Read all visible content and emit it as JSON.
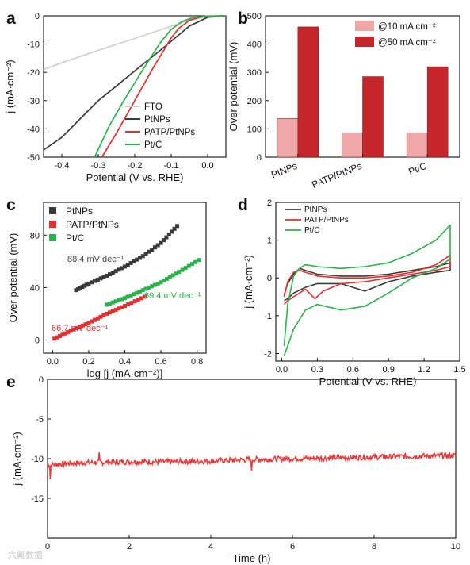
{
  "chart_data": [
    {
      "panel_label": "a",
      "type": "line",
      "xlabel": "Potential (V vs. RHE)",
      "ylabel": "j (mA·cm⁻²)",
      "xlim": [
        -0.45,
        0.05
      ],
      "ylim": [
        -50,
        0
      ],
      "x_ticks": [
        "-0.4",
        "-0.3",
        "-0.2",
        "-0.1",
        "0.0"
      ],
      "y_ticks": [
        "0",
        "-10",
        "-20",
        "-30",
        "-40",
        "-50"
      ],
      "legend_position": "bottom-right",
      "series": [
        {
          "name": "FTO",
          "color": "#d0d0d0",
          "x": [
            -0.45,
            -0.4,
            -0.3,
            -0.2,
            -0.1,
            -0.05,
            0.0,
            0.05
          ],
          "y": [
            -19,
            -16.6,
            -12.2,
            -8,
            -3.7,
            -1.5,
            -0.3,
            0
          ]
        },
        {
          "name": "PtNPs",
          "color": "#3a3a3a",
          "x": [
            -0.45,
            -0.4,
            -0.35,
            -0.3,
            -0.25,
            -0.2,
            -0.15,
            -0.1,
            -0.05,
            0.0,
            0.05
          ],
          "y": [
            -47.5,
            -43,
            -36.5,
            -30,
            -24.8,
            -19.5,
            -14.3,
            -9,
            -3.6,
            -0.5,
            0
          ]
        },
        {
          "name": "PATP/PtNPs",
          "color": "#e23030",
          "x": [
            -0.29,
            -0.25,
            -0.2,
            -0.15,
            -0.1,
            -0.08,
            -0.05,
            -0.02,
            0.0,
            0.05
          ],
          "y": [
            -50,
            -41.5,
            -30,
            -18.5,
            -7.8,
            -4.5,
            -1.6,
            -0.4,
            -0.1,
            0
          ]
        },
        {
          "name": "Pt/C",
          "color": "#2bb24c",
          "x": [
            -0.31,
            -0.27,
            -0.23,
            -0.18,
            -0.13,
            -0.1,
            -0.07,
            -0.04,
            0.0,
            0.05
          ],
          "y": [
            -50,
            -39,
            -30,
            -19.5,
            -9.5,
            -4.8,
            -2,
            -0.6,
            -0.1,
            0
          ]
        }
      ]
    },
    {
      "panel_label": "b",
      "type": "bar",
      "xlabel": "",
      "ylabel": "Over potential (mV)",
      "ylim": [
        0,
        500
      ],
      "y_ticks": [
        "0",
        "100",
        "200",
        "300",
        "400",
        "500"
      ],
      "categories": [
        "PtNPs",
        "PATP/PtNPs",
        "Pt/C"
      ],
      "legend_position": "top-right",
      "series": [
        {
          "name": "@10 mA cm⁻²",
          "color": "#efa7a7",
          "values": [
            137,
            85,
            85
          ]
        },
        {
          "name": "@50 mA cm⁻²",
          "color": "#c4262b",
          "values": [
            461,
            285,
            320
          ]
        }
      ]
    },
    {
      "panel_label": "c",
      "type": "scatter",
      "xlabel": "log [j (mA·cm⁻²)]",
      "ylabel": "Over potential (mV)",
      "xlim": [
        -0.05,
        0.85
      ],
      "ylim": [
        -10,
        105
      ],
      "x_ticks": [
        "0.0",
        "0.2",
        "0.4",
        "0.6",
        "0.8"
      ],
      "y_ticks": [
        "0",
        "40",
        "80"
      ],
      "legend_position": "top-left",
      "series": [
        {
          "name": "PtNPs",
          "color": "#3a3a3a",
          "slope_label": "88.4 mV dec⁻¹",
          "x": [
            0.13,
            0.2,
            0.3,
            0.4,
            0.5,
            0.6,
            0.69
          ],
          "y": [
            38,
            43,
            49,
            56,
            64,
            74,
            87
          ]
        },
        {
          "name": "PATP/PtNPs",
          "color": "#e23030",
          "slope_label": "66.7 mV dec⁻¹",
          "x": [
            0.01,
            0.1,
            0.2,
            0.3,
            0.4,
            0.51
          ],
          "y": [
            1,
            7,
            13,
            20,
            26,
            33
          ]
        },
        {
          "name": "Pt/C",
          "color": "#2bb24c",
          "slope_label": "69.4 mV dec⁻¹",
          "x": [
            0.3,
            0.4,
            0.5,
            0.6,
            0.7,
            0.81
          ],
          "y": [
            27,
            32,
            38,
            44,
            52,
            61
          ]
        }
      ]
    },
    {
      "panel_label": "d",
      "type": "line",
      "xlabel": "Potential (V vs. RHE)",
      "ylabel": "j (mA·cm⁻²)",
      "xlim": [
        -0.05,
        1.5
      ],
      "ylim": [
        -2.2,
        2
      ],
      "x_ticks": [
        "0.0",
        "0.3",
        "0.6",
        "0.9",
        "1.2",
        "1.5"
      ],
      "y_ticks": [
        "2",
        "1",
        "0",
        "-1",
        "-2"
      ],
      "legend_position": "top-left",
      "series": [
        {
          "name": "PtNPs",
          "color": "#3a3a3a",
          "x": [
            0.02,
            0.05,
            0.1,
            0.15,
            0.2,
            0.3,
            0.5,
            0.7,
            0.9,
            1.1,
            1.3,
            1.42,
            1.42,
            1.3,
            1.1,
            0.9,
            0.7,
            0.6,
            0.5,
            0.3,
            0.2,
            0.1,
            0.05,
            0.02
          ],
          "y": [
            -0.45,
            -0.15,
            0.1,
            0.25,
            0.2,
            0.1,
            0.05,
            0.05,
            0.1,
            0.2,
            0.3,
            0.4,
            0.2,
            0.15,
            0.05,
            -0.1,
            -0.35,
            -0.25,
            -0.15,
            -0.15,
            -0.25,
            -0.4,
            -0.55,
            -0.6
          ]
        },
        {
          "name": "PATP/PtNPs",
          "color": "#e23030",
          "x": [
            0.02,
            0.05,
            0.1,
            0.15,
            0.2,
            0.3,
            0.5,
            0.7,
            0.9,
            1.1,
            1.3,
            1.42,
            1.42,
            1.3,
            1.1,
            0.9,
            0.7,
            0.5,
            0.35,
            0.28,
            0.2,
            0.1,
            0.05,
            0.02
          ],
          "y": [
            -0.5,
            -0.1,
            0.15,
            0.2,
            0.15,
            0.05,
            0.0,
            0.0,
            0.05,
            0.15,
            0.35,
            0.6,
            0.3,
            0.2,
            0.1,
            0.0,
            -0.1,
            -0.15,
            -0.35,
            -0.55,
            -0.3,
            -0.5,
            -0.6,
            -0.7
          ]
        },
        {
          "name": "Pt/C",
          "color": "#2bb24c",
          "x": [
            0.02,
            0.05,
            0.1,
            0.15,
            0.2,
            0.3,
            0.5,
            0.7,
            0.9,
            1.1,
            1.3,
            1.42,
            1.42,
            1.3,
            1.1,
            0.9,
            0.7,
            0.5,
            0.3,
            0.2,
            0.1,
            0.05,
            0.02
          ],
          "y": [
            -1.8,
            -0.7,
            0.05,
            0.25,
            0.35,
            0.3,
            0.25,
            0.3,
            0.4,
            0.65,
            1.0,
            1.4,
            0.5,
            0.25,
            0.0,
            -0.4,
            -0.75,
            -0.85,
            -0.7,
            -0.85,
            -1.35,
            -1.8,
            -2.05
          ]
        }
      ]
    },
    {
      "panel_label": "e",
      "type": "line",
      "xlabel": "Time (h)",
      "ylabel": "j (mA·cm⁻²)",
      "xlim": [
        0,
        10
      ],
      "ylim": [
        -20,
        0
      ],
      "x_ticks": [
        "0",
        "2",
        "4",
        "6",
        "8",
        "10"
      ],
      "y_ticks": [
        "0",
        "-5",
        "-10",
        "-15"
      ],
      "series": [
        {
          "name": "",
          "color": "#e83a3a",
          "x": [
            0,
            0.5,
            1,
            2,
            3,
            4,
            5,
            6,
            7,
            8,
            9,
            10
          ],
          "y": [
            -10.8,
            -10.6,
            -10.5,
            -10.4,
            -10.4,
            -10.3,
            -10.1,
            -10.0,
            -9.9,
            -9.8,
            -9.7,
            -9.6
          ]
        }
      ]
    }
  ],
  "watermark": "六氟数据"
}
